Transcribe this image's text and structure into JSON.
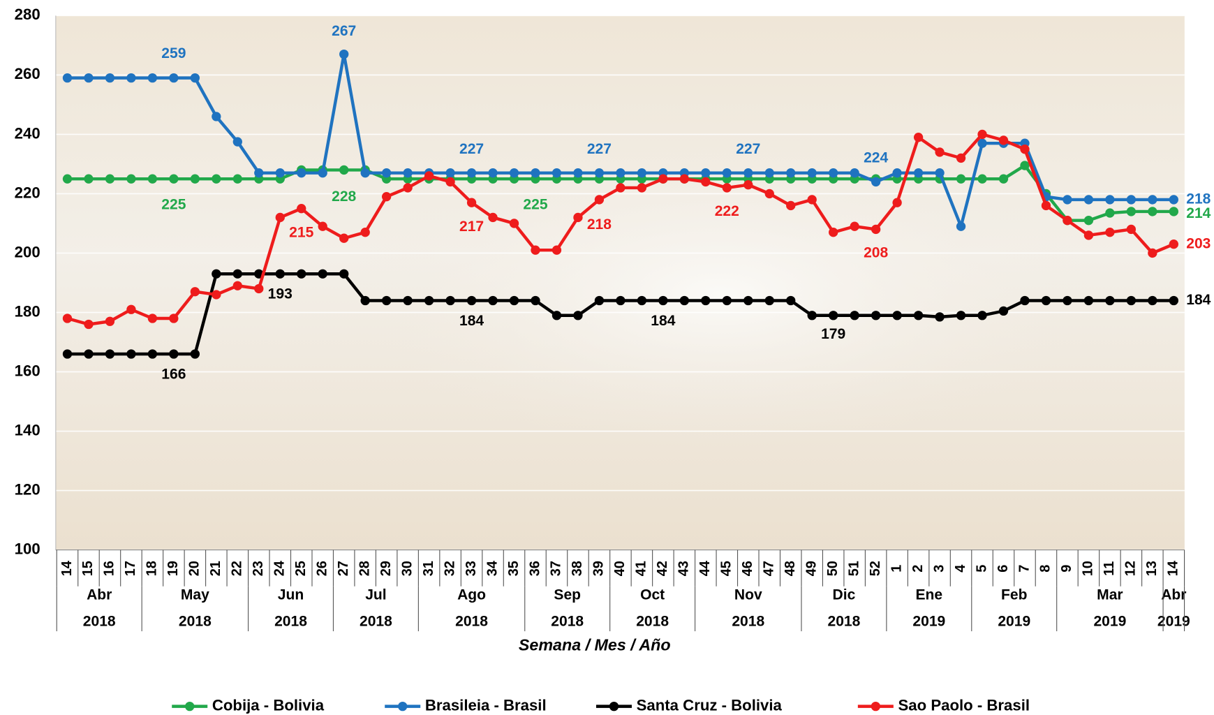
{
  "chart_data": {
    "type": "line",
    "x_label": "Semana / Mes / Año",
    "categories": [
      "14",
      "15",
      "16",
      "17",
      "18",
      "19",
      "20",
      "21",
      "22",
      "23",
      "24",
      "25",
      "26",
      "27",
      "28",
      "29",
      "30",
      "31",
      "32",
      "33",
      "34",
      "35",
      "36",
      "37",
      "38",
      "39",
      "40",
      "41",
      "42",
      "43",
      "44",
      "45",
      "46",
      "47",
      "48",
      "49",
      "50",
      "51",
      "52",
      "1",
      "2",
      "3",
      "4",
      "5",
      "6",
      "7",
      "8",
      "9",
      "10",
      "11",
      "12",
      "13",
      "14"
    ],
    "months": [
      "Abr",
      null,
      null,
      null,
      "May",
      null,
      null,
      null,
      null,
      "Jun",
      null,
      null,
      null,
      "Jul",
      null,
      null,
      null,
      "Ago",
      null,
      null,
      null,
      null,
      "Sep",
      null,
      null,
      null,
      "Oct",
      null,
      null,
      null,
      "Nov",
      null,
      null,
      null,
      null,
      "Dic",
      null,
      null,
      null,
      "Ene",
      null,
      null,
      null,
      "Feb",
      null,
      null,
      null,
      "Mar",
      null,
      null,
      null,
      null,
      "Abr"
    ],
    "years": [
      "2018",
      null,
      null,
      null,
      "2018",
      null,
      null,
      null,
      null,
      "2018",
      null,
      null,
      null,
      "2018",
      null,
      null,
      null,
      "2018",
      null,
      null,
      null,
      null,
      "2018",
      null,
      null,
      null,
      "2018",
      null,
      null,
      null,
      "2018",
      null,
      null,
      null,
      null,
      "2018",
      null,
      null,
      null,
      "2019",
      null,
      null,
      null,
      "2019",
      null,
      null,
      null,
      "2019",
      null,
      null,
      null,
      null,
      "2019"
    ],
    "ylim": [
      100,
      280
    ],
    "yticks": [
      100,
      120,
      140,
      160,
      180,
      200,
      220,
      240,
      260,
      280
    ],
    "grid": true,
    "legend": "bottom",
    "series": [
      {
        "name": "Cobija - Bolivia",
        "color": "#21a84a",
        "values": [
          225,
          225,
          225,
          225,
          225,
          225,
          225,
          225,
          225,
          225,
          225,
          228,
          228,
          228,
          228,
          225,
          225,
          225,
          225,
          225,
          225,
          225,
          225,
          225,
          225,
          225,
          225,
          225,
          225,
          225,
          225,
          225,
          225,
          225,
          225,
          225,
          225,
          225,
          225,
          225,
          225,
          225,
          225,
          225,
          225,
          229.5,
          220,
          211,
          211,
          213.5,
          214,
          214,
          214
        ]
      },
      {
        "name": "Brasileia - Brasil",
        "color": "#1f73c0",
        "values": [
          259,
          259,
          259,
          259,
          259,
          259,
          259,
          246,
          237.5,
          227,
          227,
          227,
          227,
          267,
          227,
          227,
          227,
          227,
          227,
          227,
          227,
          227,
          227,
          227,
          227,
          227,
          227,
          227,
          227,
          227,
          227,
          227,
          227,
          227,
          227,
          227,
          227,
          227,
          224,
          227,
          227,
          227,
          209,
          237,
          237,
          237,
          219,
          218,
          218,
          218,
          218,
          218,
          218
        ]
      },
      {
        "name": "Santa Cruz - Bolivia",
        "color": "#000000",
        "values": [
          166,
          166,
          166,
          166,
          166,
          166,
          166,
          193,
          193,
          193,
          193,
          193,
          193,
          193,
          184,
          184,
          184,
          184,
          184,
          184,
          184,
          184,
          184,
          179,
          179,
          184,
          184,
          184,
          184,
          184,
          184,
          184,
          184,
          184,
          184,
          179,
          179,
          179,
          179,
          179,
          179,
          178.5,
          179,
          179,
          180.5,
          184,
          184,
          184,
          184,
          184,
          184,
          184,
          184
        ]
      },
      {
        "name": "Sao Paolo - Brasil",
        "color": "#ee1c1c",
        "values": [
          178,
          176,
          177,
          181,
          178,
          178,
          187,
          186,
          189,
          188,
          212,
          215,
          209,
          205,
          207,
          219,
          222,
          226,
          224,
          217,
          212,
          210,
          201,
          201,
          212,
          218,
          222,
          222,
          225,
          225,
          224,
          222,
          223,
          220,
          216,
          218,
          207,
          209,
          208,
          217,
          239,
          234,
          232,
          240,
          238,
          235,
          216,
          211,
          206,
          207,
          208,
          200,
          203
        ]
      }
    ]
  }
}
